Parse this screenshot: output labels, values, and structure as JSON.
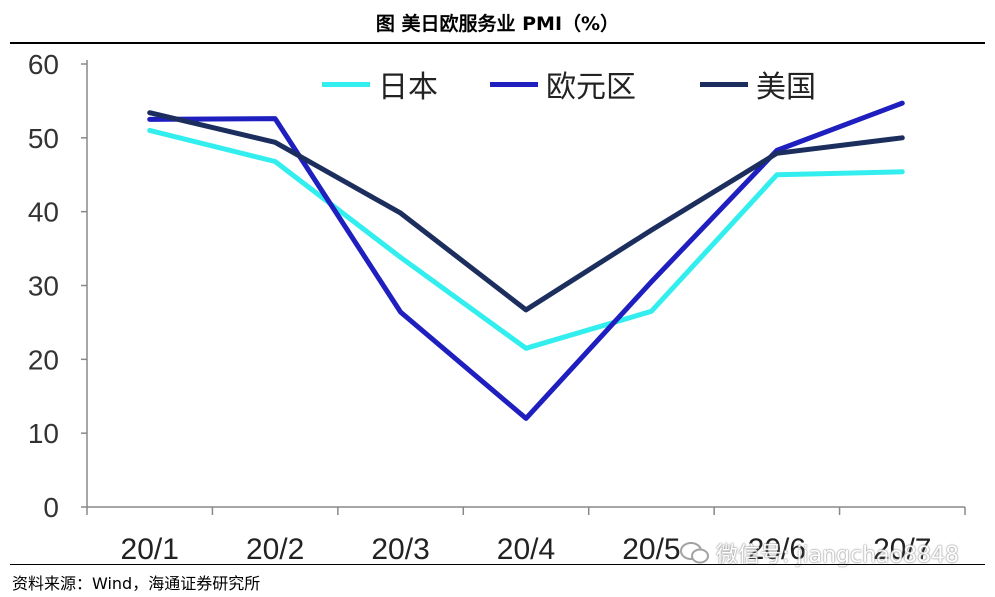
{
  "title": "图  美日欧服务业 PMI（%）",
  "source": "资料来源：Wind，海通证券研究所",
  "watermark": "微信号: jiangchao8848",
  "chart_data": {
    "type": "line",
    "categories": [
      "20/1",
      "20/2",
      "20/3",
      "20/4",
      "20/5",
      "20/6",
      "20/7"
    ],
    "ylim": [
      0,
      60
    ],
    "yticks": [
      0,
      10,
      20,
      30,
      40,
      50,
      60
    ],
    "grid": false,
    "legend_position": "top",
    "series": [
      {
        "name": "日本",
        "color": "#33EEEE",
        "values": [
          51.0,
          46.8,
          33.8,
          21.5,
          26.5,
          45.0,
          45.4
        ]
      },
      {
        "name": "欧元区",
        "color": "#1F1FBF",
        "values": [
          52.5,
          52.6,
          26.4,
          12.0,
          30.5,
          48.3,
          54.7
        ]
      },
      {
        "name": "美国",
        "color": "#1B2E5E",
        "values": [
          53.4,
          49.4,
          39.8,
          26.7,
          37.5,
          47.9,
          50.0
        ]
      }
    ]
  }
}
